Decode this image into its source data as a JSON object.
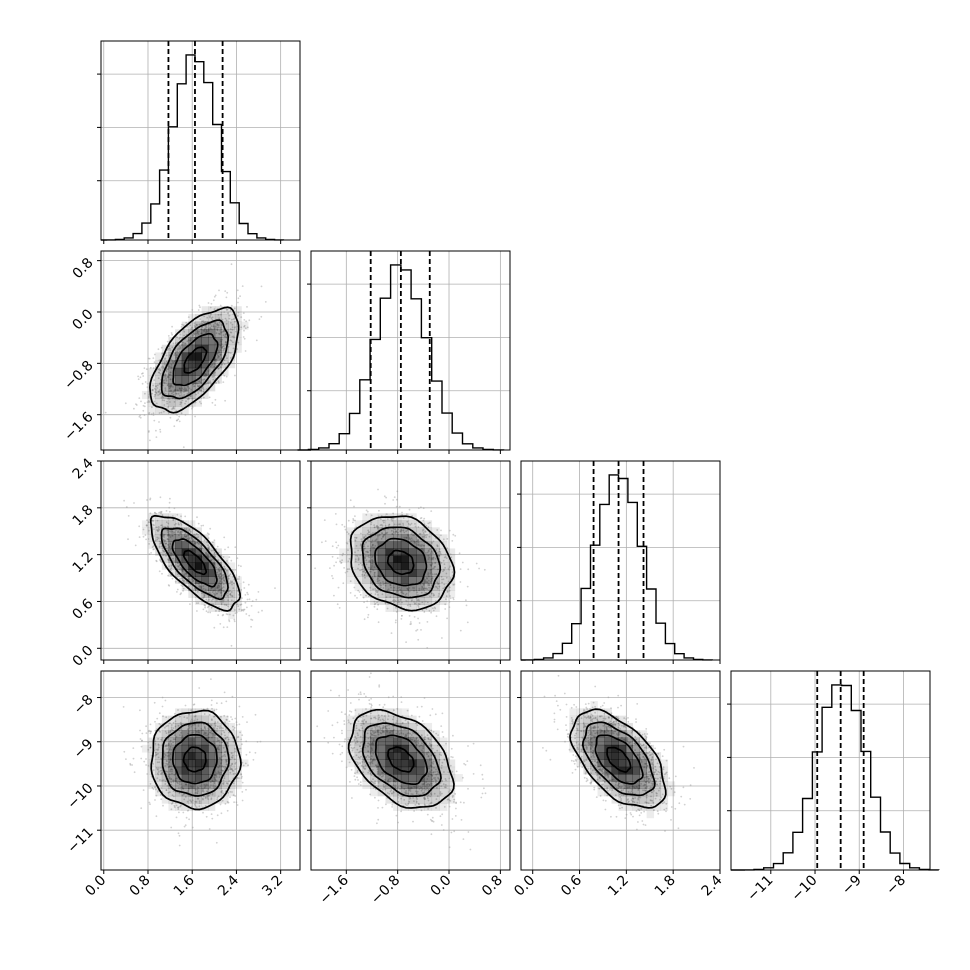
{
  "chart_data": {
    "type": "corner",
    "grid": true,
    "parameters": [
      {
        "mean": 1.65,
        "sd": 0.4,
        "lim": [
          -0.05,
          3.55
        ],
        "ticks": [
          0.0,
          0.8,
          1.6,
          2.4,
          3.2
        ],
        "tick_labels": [
          "0.0",
          "0.8",
          "1.6",
          "2.4",
          "3.2"
        ],
        "quantiles": [
          1.17,
          1.65,
          2.15
        ]
      },
      {
        "mean": -0.75,
        "sd": 0.4,
        "lim": [
          -2.15,
          0.95
        ],
        "ticks": [
          -1.6,
          -0.8,
          0.0,
          0.8
        ],
        "tick_labels": [
          "−1.6",
          "−0.8",
          "0.0",
          "0.8"
        ],
        "quantiles": [
          -1.22,
          -0.75,
          -0.3
        ]
      },
      {
        "mean": 1.1,
        "sd": 0.3,
        "lim": [
          -0.15,
          2.4
        ],
        "ticks": [
          0.0,
          0.6,
          1.2,
          1.8,
          2.4
        ],
        "tick_labels": [
          "0.0",
          "0.6",
          "1.2",
          "1.8",
          "2.4"
        ],
        "quantiles": [
          0.78,
          1.1,
          1.42
        ]
      },
      {
        "mean": -9.4,
        "sd": 0.55,
        "lim": [
          -11.9,
          -7.4
        ],
        "ticks": [
          -11,
          -10,
          -9,
          -8
        ],
        "tick_labels": [
          "−11",
          "−10",
          "−9",
          "−8"
        ],
        "quantiles": [
          -9.95,
          -9.42,
          -8.9
        ]
      }
    ],
    "correlations": [
      {
        "i": 1,
        "j": 0,
        "rho": 0.6
      },
      {
        "i": 2,
        "j": 0,
        "rho": -0.72
      },
      {
        "i": 2,
        "j": 1,
        "rho": -0.2
      },
      {
        "i": 3,
        "j": 0,
        "rho": 0.0
      },
      {
        "i": 3,
        "j": 1,
        "rho": -0.4
      },
      {
        "i": 3,
        "j": 2,
        "rho": -0.55
      }
    ],
    "contour_levels_sigma": [
      0.5,
      1.0,
      1.5,
      2.0
    ],
    "histogram_bins": 20,
    "colors": {
      "line": "#000000",
      "grid": "#b0b0b0",
      "points": "#9a9a9a",
      "density": "#000000"
    }
  }
}
